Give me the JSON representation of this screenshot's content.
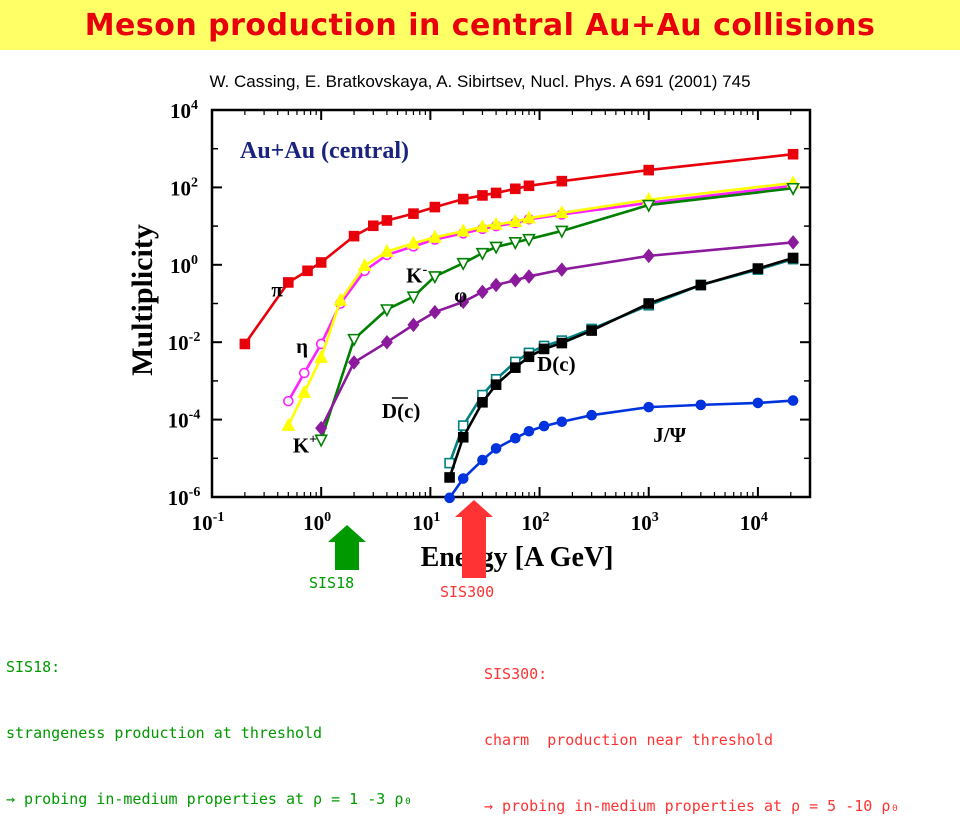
{
  "title": "Meson production in central Au+Au collisions",
  "citation": "W. Cassing, E. Bratkovskaya, A. Sibirtsev, Nucl. Phys. A 691 (2001) 745",
  "panel_label": "Au+Au (central)",
  "chart_data": {
    "type": "line",
    "xlabel": "Energy [A GeV]",
    "ylabel": "Multiplicity",
    "xscale": "log",
    "yscale": "log",
    "xlim": [
      0.1,
      30000
    ],
    "ylim": [
      1e-06,
      10000
    ],
    "x_ticks": [
      {
        "v": 0.1,
        "m": "10",
        "e": "-1"
      },
      {
        "v": 1,
        "m": "10",
        "e": "0"
      },
      {
        "v": 10,
        "m": "10",
        "e": "1"
      },
      {
        "v": 100,
        "m": "10",
        "e": "2"
      },
      {
        "v": 1000,
        "m": "10",
        "e": "3"
      },
      {
        "v": 10000,
        "m": "10",
        "e": "4"
      }
    ],
    "y_ticks": [
      {
        "v": 1e-06,
        "m": "10",
        "e": "-6"
      },
      {
        "v": 0.0001,
        "m": "10",
        "e": "-4"
      },
      {
        "v": 0.01,
        "m": "10",
        "e": "-2"
      },
      {
        "v": 1,
        "m": "10",
        "e": "0"
      },
      {
        "v": 100,
        "m": "10",
        "e": "2"
      },
      {
        "v": 10000,
        "m": "10",
        "e": "4"
      }
    ],
    "series": [
      {
        "name": "π",
        "color": "#e8000b",
        "marker": "square",
        "fill": true,
        "x": [
          0.2,
          0.5,
          0.75,
          1.0,
          2.0,
          3.0,
          4.0,
          7.0,
          11.0,
          20.0,
          30.0,
          40.0,
          60.0,
          80.0,
          160.0,
          1000.0,
          21000.0
        ],
        "y": [
          0.009,
          0.35,
          0.7,
          1.15,
          5.5,
          10.2,
          14,
          21,
          31,
          50,
          62,
          72,
          92,
          110,
          145,
          280,
          720
        ]
      },
      {
        "name": "η",
        "color": "#ff22ff",
        "marker": "circle",
        "fill": false,
        "x": [
          0.5,
          0.7,
          1.0,
          1.5,
          2.5,
          4.0,
          7.0,
          11.0,
          20.0,
          30.0,
          40.0,
          60.0,
          80.0,
          160.0,
          1000.0,
          21000.0
        ],
        "y": [
          0.0003,
          0.0016,
          0.009,
          0.1,
          0.7,
          1.8,
          3.0,
          4.5,
          6.5,
          8.5,
          10,
          12,
          15,
          20,
          40,
          110
        ]
      },
      {
        "name": "K+",
        "color": "#ffff00",
        "marker": "triangle-up",
        "fill": true,
        "x": [
          0.5,
          0.7,
          1.0,
          1.5,
          2.5,
          4.0,
          7.0,
          11.0,
          20.0,
          30.0,
          40.0,
          60.0,
          80.0,
          160.0,
          1000.0,
          21000.0
        ],
        "y": [
          7e-05,
          0.0005,
          0.004,
          0.12,
          0.95,
          2.2,
          3.6,
          5.1,
          7.4,
          9.5,
          11,
          13,
          16,
          22,
          48,
          130
        ]
      },
      {
        "name": "K-",
        "color": "#008000",
        "marker": "triangle-down",
        "fill": false,
        "x": [
          1.0,
          2.0,
          4.0,
          7.0,
          11.0,
          20.0,
          30.0,
          40.0,
          60.0,
          80.0,
          160.0,
          1000.0,
          21000.0
        ],
        "y": [
          3e-05,
          0.012,
          0.07,
          0.15,
          0.5,
          1.1,
          2.0,
          2.9,
          3.8,
          4.6,
          7.5,
          35,
          95
        ]
      },
      {
        "name": "φ",
        "color": "#8b1a9c",
        "marker": "diamond",
        "fill": true,
        "x": [
          1.0,
          2.0,
          4.0,
          7.0,
          11.0,
          20.0,
          30.0,
          40.0,
          60.0,
          80.0,
          160.0,
          1000.0,
          21000.0
        ],
        "y": [
          6e-05,
          0.003,
          0.01,
          0.028,
          0.06,
          0.11,
          0.2,
          0.3,
          0.4,
          0.5,
          0.75,
          1.7,
          3.8
        ]
      },
      {
        "name": "D(c)",
        "color": "#008080",
        "marker": "square",
        "fill": false,
        "x": [
          15.0,
          20.0,
          30.0,
          40.0,
          60.0,
          80.0,
          110.0,
          160.0,
          300.0,
          1000.0,
          3000.0,
          10000.0,
          21000.0
        ],
        "y": [
          7.5e-06,
          7e-05,
          0.00043,
          0.0011,
          0.0031,
          0.0053,
          0.008,
          0.011,
          0.022,
          0.09,
          0.3,
          0.75,
          1.4
        ]
      },
      {
        "name": "D(c)",
        "color": "#000000",
        "marker": "square",
        "fill": true,
        "x": [
          15.0,
          20.0,
          30.0,
          40.0,
          60.0,
          80.0,
          110.0,
          160.0,
          300.0,
          1000.0,
          3000.0,
          10000.0,
          21000.0
        ],
        "y": [
          3.2e-06,
          3.5e-05,
          0.00028,
          0.0008,
          0.0022,
          0.0042,
          0.0067,
          0.0095,
          0.02,
          0.1,
          0.3,
          0.8,
          1.5
        ]
      },
      {
        "name": "J/Ψ",
        "color": "#0033dd",
        "marker": "circle",
        "fill": true,
        "x": [
          15.0,
          20.0,
          30.0,
          40.0,
          60.0,
          80.0,
          110.0,
          160.0,
          300.0,
          1000.0,
          3000.0,
          10000.0,
          21000.0
        ],
        "y": [
          9.5e-07,
          3e-06,
          9e-06,
          1.8e-05,
          3.3e-05,
          5e-05,
          6.8e-05,
          8.8e-05,
          0.00013,
          0.00021,
          0.00024,
          0.00027,
          0.00031
        ]
      }
    ],
    "series_labels": [
      {
        "text": "π",
        "color": "#000000",
        "x": 0.35,
        "y": 0.15
      },
      {
        "text": "η",
        "color": "#000000",
        "x": 0.59,
        "y": 0.0052
      },
      {
        "text": "K",
        "sup": "+",
        "color": "#000000",
        "x": 0.55,
        "y": 1.4e-05
      },
      {
        "text": "K",
        "sup": "-",
        "color": "#000000",
        "x": 6.0,
        "y": 0.35
      },
      {
        "text": "φ",
        "color": "#000000",
        "x": 16.5,
        "y": 0.11
      },
      {
        "text": "D(c)",
        "color": "#000000",
        "x": 95.0,
        "y": 0.0018
      },
      {
        "text": "D(c)",
        "overline": true,
        "color": "#000000",
        "x": 3.6,
        "y": 0.00011
      },
      {
        "text": "J/Ψ",
        "color": "#000000",
        "x": 1100.0,
        "y": 2.6e-05
      }
    ]
  },
  "arrows": {
    "sis18": {
      "label": "SIS18",
      "color": "#009900"
    },
    "sis300": {
      "label": "SIS300",
      "color": "#ff3333"
    }
  },
  "notes": {
    "left": {
      "line1": "SIS18:",
      "line2": "strangeness production at threshold",
      "line3": "→ probing in-medium properties at ρ = 1 -3 ρ₀",
      "color": "#009900"
    },
    "right": {
      "line1": "SIS300:",
      "line2": "charm  production near threshold",
      "line3": "→ probing in-medium properties at ρ = 5 -10 ρ₀",
      "color": "#ff3333"
    }
  }
}
